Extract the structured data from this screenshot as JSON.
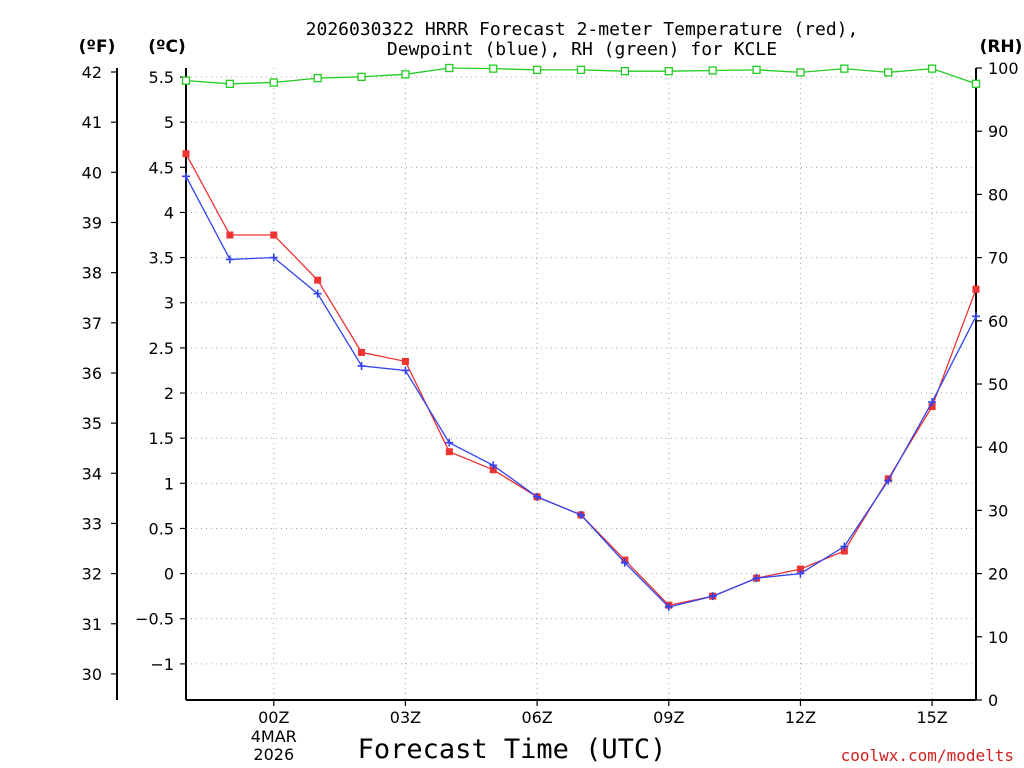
{
  "chart_data": {
    "type": "line",
    "title": "2026030322 HRRR Forecast 2-meter Temperature (red),",
    "subtitle": "Dewpoint (blue), RH (green) for KCLE",
    "xlabel": "Forecast Time (UTC)",
    "credit": "coolwx.com/modelts",
    "units": {
      "fahrenheit": "(ºF)",
      "celsius": "(ºC)",
      "rh": "(RH)"
    },
    "x_hours": [
      -2,
      -1,
      0,
      1,
      2,
      3,
      4,
      5,
      6,
      7,
      8,
      9,
      10,
      11,
      12,
      13,
      14,
      15,
      16
    ],
    "x_ticks": [
      {
        "hour": 0,
        "label": "00Z",
        "line2": "4MAR",
        "line3": "2026"
      },
      {
        "hour": 3,
        "label": "03Z"
      },
      {
        "hour": 6,
        "label": "06Z"
      },
      {
        "hour": 9,
        "label": "09Z"
      },
      {
        "hour": 12,
        "label": "12Z"
      },
      {
        "hour": 15,
        "label": "15Z"
      }
    ],
    "ylim_c": [
      -1.4,
      5.6
    ],
    "ylim_rh": [
      0,
      100
    ],
    "celsius_ticks": [
      "5.5",
      "5",
      "4.5",
      "4",
      "3.5",
      "3",
      "2.5",
      "2",
      "1.5",
      "1",
      "0.5",
      "0",
      "−0.5",
      "−1"
    ],
    "fahrenheit_ticks": [
      "42",
      "41",
      "40",
      "39",
      "38",
      "37",
      "36",
      "35",
      "34",
      "33",
      "32",
      "31",
      "30"
    ],
    "rh_ticks": [
      "100",
      "90",
      "80",
      "70",
      "60",
      "50",
      "40",
      "30",
      "20",
      "10",
      "0"
    ],
    "series": [
      {
        "name": "Temperature",
        "color": "#ee3333",
        "marker": "square",
        "values": [
          4.65,
          3.75,
          3.75,
          3.25,
          2.45,
          2.35,
          1.35,
          1.15,
          0.85,
          0.65,
          0.15,
          -0.35,
          -0.25,
          -0.05,
          0.05,
          0.25,
          1.05,
          1.85,
          3.15
        ]
      },
      {
        "name": "Dewpoint",
        "color": "#3344ee",
        "marker": "plus",
        "values": [
          4.4,
          3.48,
          3.5,
          3.1,
          2.3,
          2.25,
          1.45,
          1.2,
          0.85,
          0.65,
          0.12,
          -0.37,
          -0.25,
          -0.05,
          0.0,
          0.3,
          1.03,
          1.9,
          2.85
        ]
      },
      {
        "name": "RH",
        "color": "#22cc22",
        "marker": "open-square",
        "axis": "rh",
        "values": [
          98,
          97.5,
          97.7,
          98.4,
          98.6,
          99,
          100,
          99.9,
          99.7,
          99.7,
          99.5,
          99.5,
          99.6,
          99.7,
          99.3,
          99.9,
          99.3,
          99.9,
          97.5
        ]
      }
    ]
  }
}
